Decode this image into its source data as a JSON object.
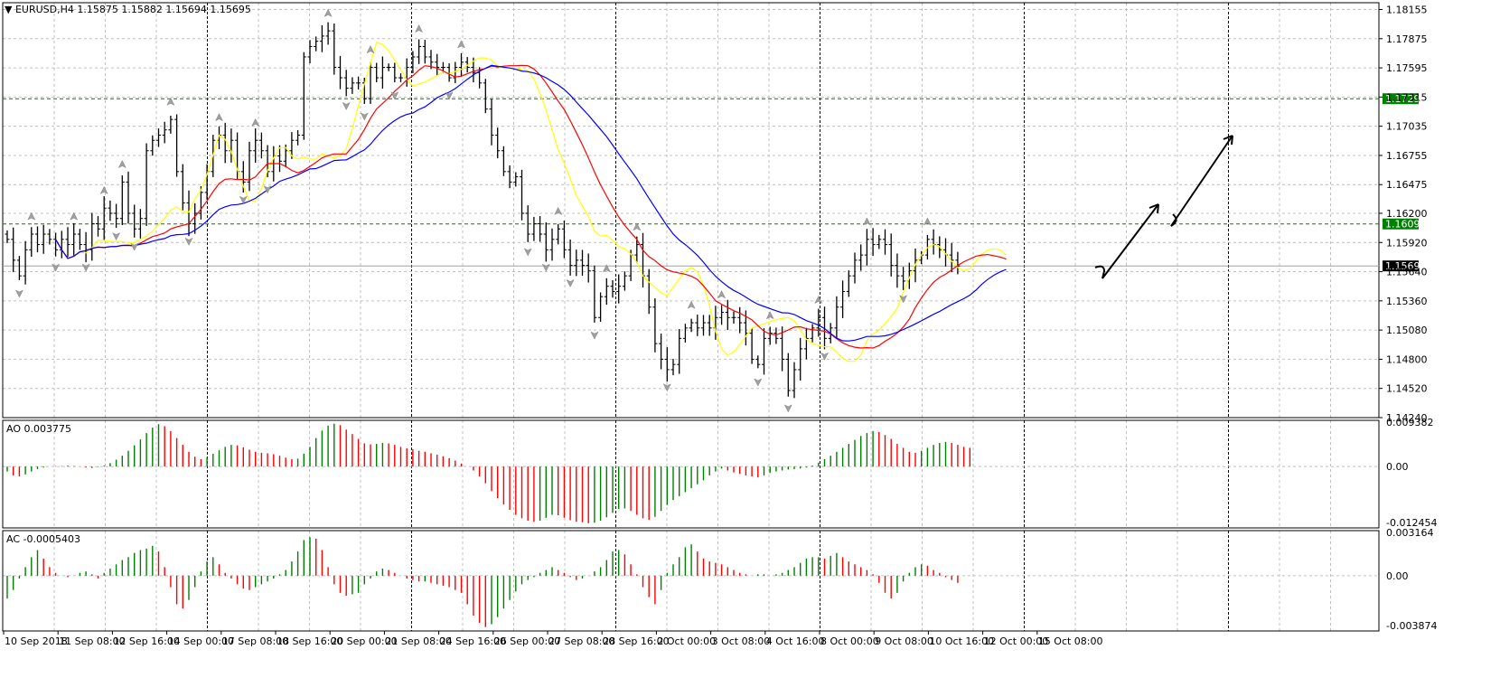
{
  "header": {
    "symbol_line": "EURUSD,H4  1.15875 1.15882 1.15694 1.15695",
    "ao_label": "AO 0.003775",
    "ac_label": "AC -0.0005403"
  },
  "colors": {
    "background": "#ffffff",
    "grid": "#c0c0c0",
    "bars": "#000000",
    "ma_fast": "#ffff00",
    "ma_mid": "#ff0000",
    "ma_slow": "#0000ff",
    "level_line": "#008000",
    "level_tag_bg": "#008000",
    "current_price_tag_bg": "#000000",
    "osc_up": "#008000",
    "osc_down": "#ff0000"
  },
  "icons": [
    "fractal-up-arrow-icon",
    "fractal-down-arrow-icon",
    "dropdown-triangle-icon"
  ],
  "chart_data": [
    {
      "type": "candlestick",
      "title": "EURUSD,H4",
      "ohlc_current": {
        "open": 1.15875,
        "high": 1.15882,
        "low": 1.15694,
        "close": 1.15695
      },
      "ylim": [
        1.1424,
        1.1822
      ],
      "y_ticks": [
        "1.18155",
        "1.17875",
        "1.17595",
        "1.17315",
        "1.17035",
        "1.16755",
        "1.16475",
        "1.16200",
        "1.15920",
        "1.15640",
        "1.15360",
        "1.15080",
        "1.14800",
        "1.14520",
        "1.14240"
      ],
      "x_ticks": [
        "10 Sep 2018",
        "11 Sep 08:00",
        "12 Sep 16:00",
        "14 Sep 00:00",
        "17 Sep 08:00",
        "18 Sep 16:00",
        "20 Sep 00:00",
        "21 Sep 08:00",
        "24 Sep 16:00",
        "26 Sep 00:00",
        "27 Sep 08:00",
        "28 Sep 16:00",
        "2 Oct 00:00",
        "3 Oct 08:00",
        "4 Oct 16:00",
        "8 Oct 00:00",
        "9 Oct 08:00",
        "10 Oct 16:00",
        "12 Oct 00:00",
        "15 Oct 08:00"
      ],
      "horizontal_levels": [
        {
          "value": 1.17299,
          "label": "1.17299"
        },
        {
          "value": 1.16098,
          "label": "1.16098"
        }
      ],
      "current_price": {
        "value": 1.15695,
        "label": "1.15695"
      },
      "close_series": [
        1.1595,
        1.1575,
        1.156,
        1.1585,
        1.16,
        1.159,
        1.16,
        1.1595,
        1.1585,
        1.1595,
        1.159,
        1.16,
        1.159,
        1.1585,
        1.161,
        1.1605,
        1.1625,
        1.162,
        1.1615,
        1.165,
        1.162,
        1.1605,
        1.1615,
        1.168,
        1.169,
        1.1695,
        1.17,
        1.171,
        1.166,
        1.163,
        1.161,
        1.162,
        1.164,
        1.166,
        1.169,
        1.1695,
        1.168,
        1.169,
        1.166,
        1.165,
        1.168,
        1.169,
        1.168,
        1.166,
        1.1675,
        1.167,
        1.168,
        1.169,
        1.1695,
        1.177,
        1.178,
        1.1785,
        1.179,
        1.1795,
        1.176,
        1.175,
        1.174,
        1.1745,
        1.1745,
        1.173,
        1.176,
        1.175,
        1.176,
        1.176,
        1.175,
        1.175,
        1.176,
        1.177,
        1.178,
        1.177,
        1.1765,
        1.176,
        1.176,
        1.175,
        1.176,
        1.1765,
        1.176,
        1.1755,
        1.1745,
        1.172,
        1.1695,
        1.168,
        1.166,
        1.165,
        1.1655,
        1.162,
        1.16,
        1.161,
        1.16,
        1.1585,
        1.1595,
        1.1605,
        1.1585,
        1.157,
        1.1575,
        1.157,
        1.1565,
        1.152,
        1.154,
        1.155,
        1.1545,
        1.155,
        1.156,
        1.158,
        1.159,
        1.156,
        1.153,
        1.1495,
        1.148,
        1.147,
        1.1475,
        1.15,
        1.151,
        1.1515,
        1.151,
        1.1515,
        1.151,
        1.152,
        1.1525,
        1.152,
        1.152,
        1.1515,
        1.1505,
        1.148,
        1.1475,
        1.15,
        1.1505,
        1.15,
        1.148,
        1.145,
        1.147,
        1.149,
        1.15,
        1.151,
        1.152,
        1.15,
        1.151,
        1.153,
        1.1545,
        1.156,
        1.1575,
        1.158,
        1.1595,
        1.159,
        1.1595,
        1.159,
        1.157,
        1.156,
        1.1555,
        1.1565,
        1.1575,
        1.158,
        1.1595,
        1.159,
        1.1585,
        1.158,
        1.1575,
        1.15695
      ],
      "moving_averages": [
        {
          "color": "#ffff00",
          "role": "fast"
        },
        {
          "color": "#ff0000",
          "role": "medium"
        },
        {
          "color": "#0000ff",
          "role": "slow"
        }
      ],
      "annotations": [
        "hand-drawn upward arrows projecting rise toward 1.17299"
      ]
    },
    {
      "type": "bar",
      "title": "AO 0.003775",
      "ylim": [
        -0.012454,
        0.009382
      ],
      "y_ticks": [
        "0.009382",
        "0.00",
        "-0.012454"
      ],
      "values": [
        -0.001,
        -0.0018,
        -0.002,
        -0.0016,
        -0.001,
        -0.0005,
        -0.0002,
        0.0,
        0.0001,
        0.0001,
        0.0002,
        0.0001,
        0.0,
        -0.0002,
        -0.0003,
        -0.0001,
        0.0002,
        0.0007,
        0.0014,
        0.0022,
        0.0032,
        0.0043,
        0.0055,
        0.0068,
        0.0079,
        0.0086,
        0.0082,
        0.0072,
        0.0058,
        0.0044,
        0.003,
        0.002,
        0.0015,
        0.0019,
        0.0026,
        0.0033,
        0.004,
        0.0044,
        0.0043,
        0.0039,
        0.0034,
        0.003,
        0.0028,
        0.0027,
        0.0025,
        0.0022,
        0.0018,
        0.0015,
        0.0016,
        0.0026,
        0.004,
        0.0058,
        0.0073,
        0.0083,
        0.0087,
        0.0084,
        0.0075,
        0.0066,
        0.0056,
        0.0047,
        0.0045,
        0.0046,
        0.0048,
        0.0047,
        0.0044,
        0.004,
        0.0037,
        0.0035,
        0.0032,
        0.003,
        0.0027,
        0.0024,
        0.0021,
        0.0017,
        0.0012,
        0.0006,
        0.0,
        -0.0008,
        -0.002,
        -0.0034,
        -0.005,
        -0.0064,
        -0.0077,
        -0.0088,
        -0.0098,
        -0.0105,
        -0.011,
        -0.0112,
        -0.011,
        -0.0104,
        -0.0098,
        -0.0099,
        -0.0104,
        -0.0109,
        -0.0112,
        -0.0113,
        -0.0115,
        -0.0114,
        -0.011,
        -0.0103,
        -0.0094,
        -0.0086,
        -0.0085,
        -0.009,
        -0.0098,
        -0.0105,
        -0.0108,
        -0.0102,
        -0.009,
        -0.0078,
        -0.0068,
        -0.006,
        -0.0052,
        -0.0044,
        -0.0036,
        -0.0028,
        -0.0018,
        -0.001,
        -0.0004,
        -0.0008,
        -0.0012,
        -0.0015,
        -0.0018,
        -0.002,
        -0.0022,
        -0.0018,
        -0.0013,
        -0.001,
        -0.0008,
        -0.0006,
        -0.0005,
        -0.0004,
        -0.0002,
        0.0002,
        0.0008,
        0.0015,
        0.0022,
        0.003,
        0.0038,
        0.0046,
        0.0054,
        0.0062,
        0.0068,
        0.0072,
        0.007,
        0.0064,
        0.0056,
        0.0046,
        0.0038,
        0.003,
        0.0028,
        0.0032,
        0.0038,
        0.0044,
        0.0048,
        0.005,
        0.0048,
        0.0044,
        0.004,
        0.0038
      ]
    },
    {
      "type": "bar",
      "title": "AC -0.0005403",
      "ylim": [
        -0.003874,
        0.003164
      ],
      "y_ticks": [
        "0.003164",
        "0.00",
        "-0.003874"
      ],
      "values": [
        -0.0016,
        -0.001,
        -0.0002,
        0.0006,
        0.0013,
        0.0018,
        0.0012,
        0.0006,
        0.0002,
        0.0,
        -0.0001,
        0.0,
        0.0002,
        0.0003,
        0.0001,
        -0.0002,
        0.0002,
        0.0005,
        0.0008,
        0.0011,
        0.0013,
        0.0016,
        0.0018,
        0.0019,
        0.0021,
        0.0017,
        0.0006,
        -0.0008,
        -0.002,
        -0.0023,
        -0.0017,
        -0.0008,
        0.0003,
        0.001,
        0.0013,
        0.0008,
        0.0002,
        -0.0002,
        -0.0006,
        -0.0009,
        -0.001,
        -0.0008,
        -0.0006,
        -0.0004,
        -0.0002,
        0.0001,
        0.0004,
        0.001,
        0.0017,
        0.0025,
        0.0027,
        0.0026,
        0.0018,
        0.0006,
        -0.0006,
        -0.0012,
        -0.0014,
        -0.0013,
        -0.0012,
        -0.0006,
        -0.0002,
        0.0003,
        0.0005,
        0.0004,
        0.0002,
        0.0,
        -0.0002,
        -0.0003,
        -0.0004,
        -0.0004,
        -0.0005,
        -0.0006,
        -0.0007,
        -0.0008,
        -0.001,
        -0.0012,
        -0.002,
        -0.0028,
        -0.0033,
        -0.0036,
        -0.0034,
        -0.0029,
        -0.0023,
        -0.0017,
        -0.0011,
        -0.0006,
        -0.0003,
        -0.0001,
        0.0002,
        0.0004,
        0.0006,
        0.0004,
        0.0002,
        -0.0001,
        -0.0003,
        -0.0002,
        0.0,
        0.0003,
        0.0006,
        0.0011,
        0.0017,
        0.0018,
        0.0015,
        0.0008,
        0.0001,
        -0.0008,
        -0.0015,
        -0.002,
        -0.001,
        0.0002,
        0.0008,
        0.0013,
        0.002,
        0.0022,
        0.0017,
        0.0012,
        0.001,
        0.0009,
        0.0008,
        0.0006,
        0.0004,
        0.0002,
        0.0001,
        0.0,
        0.0001,
        0.0001,
        0.0,
        0.0001,
        0.0002,
        0.0004,
        0.0006,
        0.0009,
        0.0012,
        0.0013,
        0.0013,
        0.0012,
        0.0014,
        0.0016,
        0.0013,
        0.001,
        0.0008,
        0.0006,
        0.0004,
        0.0001,
        -0.0005,
        -0.0012,
        -0.0016,
        -0.0012,
        -0.0004,
        0.0002,
        0.0006,
        0.0008,
        0.0007,
        0.0004,
        0.0002,
        -0.0001,
        -0.0003,
        -0.0005
      ]
    }
  ]
}
